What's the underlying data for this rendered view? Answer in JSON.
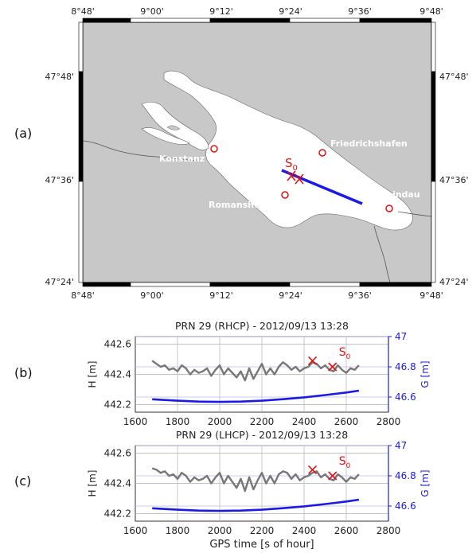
{
  "panel_labels": [
    "(a)",
    "(b)",
    "(c)"
  ],
  "map": {
    "lon_ticks": [
      "8°48'",
      "9°00'",
      "9°12'",
      "9°24'",
      "9°36'",
      "9°48'"
    ],
    "lat_ticks": [
      "47°48'",
      "47°36'",
      "47°24'"
    ],
    "cities": [
      {
        "name": "Konstanz"
      },
      {
        "name": "Friedrichshafen"
      },
      {
        "name": "Romanshorn"
      },
      {
        "name": "Lindau"
      }
    ],
    "marker_label": "S",
    "marker_sub": "0",
    "colors": {
      "land": "#c8c8c8",
      "lake": "#ffffff",
      "track": "#1a1ae6",
      "marker": "#e01010"
    }
  },
  "chart_data": [
    {
      "type": "line",
      "title": "PRN 29 (RHCP) - 2012/09/13 13:28",
      "xlabel": "",
      "ylabel": "H [m]",
      "y2label": "G [m]",
      "xlim": [
        1600,
        2800
      ],
      "ylim": [
        442.15,
        442.65
      ],
      "y2lim": [
        46.5,
        47.0
      ],
      "x_ticks": [
        "1600",
        "1800",
        "2000",
        "2200",
        "2400",
        "2600",
        "2800"
      ],
      "y_ticks": [
        "442.2",
        "442.4",
        "442.6"
      ],
      "y2_ticks": [
        "46.6",
        "46.8",
        "47"
      ],
      "marker_label": "S",
      "marker_sub": "0",
      "series": [
        {
          "axis": "left",
          "color": "#777777",
          "x": [
            1680,
            1700,
            1720,
            1740,
            1760,
            1780,
            1800,
            1820,
            1840,
            1860,
            1880,
            1900,
            1920,
            1940,
            1960,
            1980,
            2000,
            2020,
            2040,
            2060,
            2080,
            2100,
            2120,
            2140,
            2160,
            2180,
            2200,
            2220,
            2240,
            2260,
            2280,
            2300,
            2320,
            2340,
            2360,
            2380,
            2400,
            2420,
            2440,
            2460,
            2480,
            2500,
            2520,
            2540,
            2560,
            2580,
            2600,
            2620,
            2640,
            2660
          ],
          "values": [
            442.49,
            442.47,
            442.45,
            442.46,
            442.43,
            442.44,
            442.42,
            442.46,
            442.44,
            442.4,
            442.43,
            442.41,
            442.42,
            442.44,
            442.39,
            442.43,
            442.46,
            442.4,
            442.44,
            442.41,
            442.38,
            442.42,
            442.36,
            442.44,
            442.37,
            442.42,
            442.47,
            442.4,
            442.44,
            442.4,
            442.45,
            442.48,
            442.46,
            442.43,
            442.45,
            442.42,
            442.44,
            442.45,
            442.48,
            442.47,
            442.44,
            442.46,
            442.43,
            442.42,
            442.46,
            442.43,
            442.41,
            442.44,
            442.43,
            442.46
          ]
        },
        {
          "axis": "right",
          "color": "#1a1ae6",
          "x": [
            1680,
            1800,
            1900,
            2000,
            2100,
            2200,
            2300,
            2400,
            2500,
            2600,
            2660
          ],
          "values": [
            46.585,
            46.576,
            46.57,
            46.568,
            46.57,
            46.576,
            46.586,
            46.598,
            46.613,
            46.63,
            46.642
          ]
        }
      ],
      "markers": [
        {
          "x": 2440,
          "y": 442.49
        },
        {
          "x": 2535,
          "y": 442.45
        }
      ]
    },
    {
      "type": "line",
      "title": "PRN 29 (LHCP) - 2012/09/13 13:28",
      "xlabel": "GPS time [s of hour]",
      "ylabel": "H [m]",
      "y2label": "G [m]",
      "xlim": [
        1600,
        2800
      ],
      "ylim": [
        442.15,
        442.65
      ],
      "y2lim": [
        46.5,
        47.0
      ],
      "x_ticks": [
        "1600",
        "1800",
        "2000",
        "2200",
        "2400",
        "2600",
        "2800"
      ],
      "y_ticks": [
        "442.2",
        "442.4",
        "442.6"
      ],
      "y2_ticks": [
        "46.6",
        "46.8",
        "47"
      ],
      "marker_label": "S",
      "marker_sub": "0",
      "series": [
        {
          "axis": "left",
          "color": "#777777",
          "x": [
            1680,
            1700,
            1720,
            1740,
            1760,
            1780,
            1800,
            1820,
            1840,
            1860,
            1880,
            1900,
            1920,
            1940,
            1960,
            1980,
            2000,
            2020,
            2040,
            2060,
            2080,
            2100,
            2120,
            2140,
            2160,
            2180,
            2200,
            2220,
            2240,
            2260,
            2280,
            2300,
            2320,
            2340,
            2360,
            2380,
            2400,
            2420,
            2440,
            2460,
            2480,
            2500,
            2520,
            2540,
            2560,
            2580,
            2600,
            2620,
            2640,
            2660
          ],
          "values": [
            442.5,
            442.49,
            442.47,
            442.48,
            442.45,
            442.46,
            442.43,
            442.47,
            442.45,
            442.41,
            442.44,
            442.42,
            442.43,
            442.45,
            442.4,
            442.44,
            442.47,
            442.4,
            442.45,
            442.41,
            442.37,
            442.43,
            442.35,
            442.44,
            442.36,
            442.42,
            442.47,
            442.4,
            442.45,
            442.4,
            442.46,
            442.48,
            442.47,
            442.43,
            442.46,
            442.42,
            442.44,
            442.45,
            442.47,
            442.48,
            442.44,
            442.46,
            442.43,
            442.42,
            442.46,
            442.44,
            442.41,
            442.44,
            442.43,
            442.46
          ]
        },
        {
          "axis": "right",
          "color": "#1a1ae6",
          "x": [
            1680,
            1800,
            1900,
            2000,
            2100,
            2200,
            2300,
            2400,
            2500,
            2600,
            2660
          ],
          "values": [
            46.585,
            46.576,
            46.57,
            46.568,
            46.57,
            46.576,
            46.586,
            46.598,
            46.613,
            46.63,
            46.642
          ]
        }
      ],
      "markers": [
        {
          "x": 2440,
          "y": 442.49
        },
        {
          "x": 2535,
          "y": 442.45
        }
      ]
    }
  ]
}
